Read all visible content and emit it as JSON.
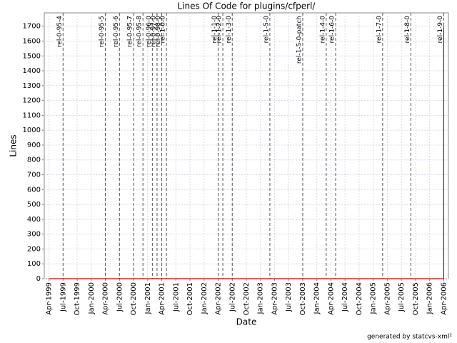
{
  "chart_data": {
    "type": "line",
    "title": "Lines Of Code for plugins/cfperl/",
    "x_label": "Date",
    "y_label": "Lines",
    "xlim": [
      "1999-03",
      "2006-05"
    ],
    "ylim": [
      0,
      1790
    ],
    "yticks": [
      0,
      100,
      200,
      300,
      400,
      500,
      600,
      700,
      800,
      900,
      1000,
      1100,
      1200,
      1300,
      1400,
      1500,
      1600,
      1700
    ],
    "xticks": [
      {
        "value": "1999-04",
        "label": "Apr-1999"
      },
      {
        "value": "1999-07",
        "label": "Jul-1999"
      },
      {
        "value": "1999-10",
        "label": "Oct-1999"
      },
      {
        "value": "2000-01",
        "label": "Jan-2000"
      },
      {
        "value": "2000-04",
        "label": "Apr-2000"
      },
      {
        "value": "2000-07",
        "label": "Jul-2000"
      },
      {
        "value": "2000-10",
        "label": "Oct-2000"
      },
      {
        "value": "2001-01",
        "label": "Jan-2001"
      },
      {
        "value": "2001-04",
        "label": "Apr-2001"
      },
      {
        "value": "2001-07",
        "label": "Jul-2001"
      },
      {
        "value": "2001-10",
        "label": "Oct-2001"
      },
      {
        "value": "2002-01",
        "label": "Jan-2002"
      },
      {
        "value": "2002-04",
        "label": "Apr-2002"
      },
      {
        "value": "2002-07",
        "label": "Jul-2002"
      },
      {
        "value": "2002-10",
        "label": "Oct-2002"
      },
      {
        "value": "2003-01",
        "label": "Jan-2003"
      },
      {
        "value": "2003-04",
        "label": "Apr-2003"
      },
      {
        "value": "2003-07",
        "label": "Jul-2003"
      },
      {
        "value": "2003-10",
        "label": "Oct-2003"
      },
      {
        "value": "2004-01",
        "label": "Jan-2004"
      },
      {
        "value": "2004-04",
        "label": "Apr-2004"
      },
      {
        "value": "2004-07",
        "label": "Jul-2004"
      },
      {
        "value": "2004-10",
        "label": "Oct-2004"
      },
      {
        "value": "2005-01",
        "label": "Jan-2005"
      },
      {
        "value": "2005-04",
        "label": "Apr-2005"
      },
      {
        "value": "2005-07",
        "label": "Jul-2005"
      },
      {
        "value": "2005-10",
        "label": "Oct-2005"
      },
      {
        "value": "2006-01",
        "label": "Jan-2006"
      },
      {
        "value": "2006-04",
        "label": "Apr-2006"
      }
    ],
    "grid": true,
    "series": [
      {
        "name": "Lines",
        "color": "#cc0000",
        "x": [
          "1999-04",
          "2006-04",
          "2006-04"
        ],
        "values": [
          0,
          0,
          1700
        ]
      }
    ],
    "markers": [
      {
        "label": "rel-0-95-4",
        "x": "1999-07"
      },
      {
        "label": "rel-0-95-5",
        "x": "2000-04"
      },
      {
        "label": "rel-0-95-6",
        "x": "2000-07"
      },
      {
        "label": "rel-0-95-7",
        "x": "2000-10"
      },
      {
        "label": "rel-0-95-8",
        "x": "2000-12"
      },
      {
        "label": "rel-0-96-0",
        "x": "2001-02"
      },
      {
        "label": "rel-0-97-0",
        "x": "2001-03"
      },
      {
        "label": "rel-0-98-0",
        "x": "2001-04"
      },
      {
        "label": "rel-1-0-0",
        "x": "2001-05"
      },
      {
        "label": "rel-1-1-0",
        "x": "2002-04"
      },
      {
        "label": "rel-1-2-0",
        "x": "2002-05"
      },
      {
        "label": "rel-1-3-0",
        "x": "2002-07"
      },
      {
        "label": "rel-1-5-0",
        "x": "2003-03"
      },
      {
        "label": "rel-1-5-0-patch",
        "x": "2003-10"
      },
      {
        "label": "rel-1-4-0",
        "x": "2004-03"
      },
      {
        "label": "rel-1-6-0",
        "x": "2004-05"
      },
      {
        "label": "rel-1-7-0",
        "x": "2005-03"
      },
      {
        "label": "rel-1-8-0",
        "x": "2005-09"
      },
      {
        "label": "rel-1-9-0",
        "x": "2006-04"
      }
    ]
  },
  "footer": "generated by statcvs-xml²"
}
